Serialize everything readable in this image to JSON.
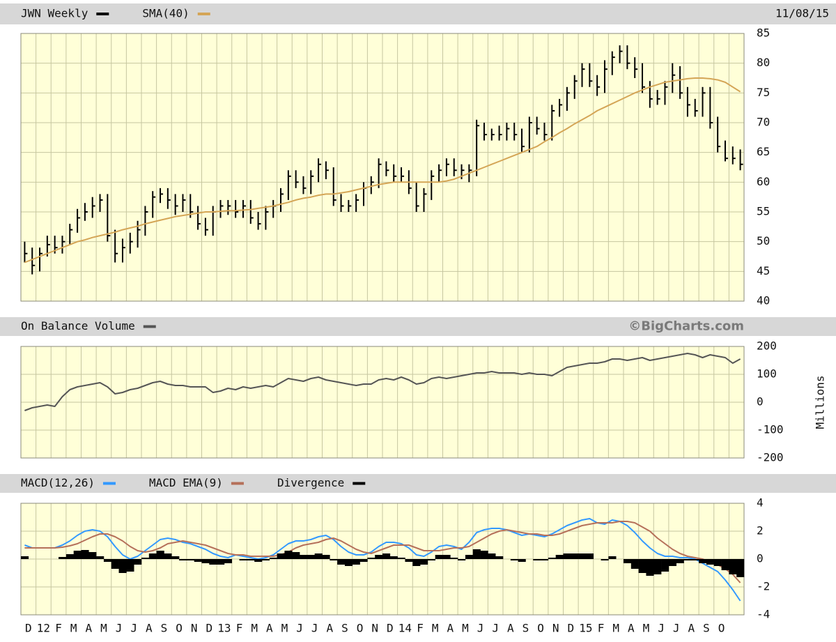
{
  "chart_data": [
    {
      "type": "ohlc",
      "date": "11/08/15",
      "ylim": [
        40,
        85
      ],
      "yticks": [
        40,
        45,
        50,
        55,
        60,
        65,
        70,
        75,
        80,
        85
      ],
      "grid": true,
      "series": [
        {
          "name": "JWN Weekly",
          "color": "#000000",
          "high": [
            50,
            49,
            49,
            51,
            51,
            51,
            53,
            55.5,
            56.5,
            57.5,
            58,
            58,
            52,
            50.5,
            51.5,
            53.5,
            56,
            58.5,
            59,
            59,
            58,
            58,
            58,
            56,
            54,
            56,
            57,
            57,
            57,
            57,
            57,
            55,
            56,
            57,
            59,
            62,
            62,
            61,
            62,
            64,
            63.5,
            62.5,
            58,
            57,
            58,
            60,
            61,
            64,
            63.5,
            63,
            62.5,
            62,
            60,
            59,
            62,
            63,
            64,
            64,
            63,
            63,
            70.5,
            70,
            69,
            69.5,
            70,
            70,
            69,
            71,
            71,
            70,
            73,
            74,
            76,
            78,
            80,
            80,
            78,
            80.5,
            82,
            83,
            83,
            81,
            80,
            77,
            75.5,
            77,
            80,
            79.5,
            76,
            74,
            76,
            76,
            71,
            67,
            66,
            65.5
          ],
          "low": [
            46.5,
            44.5,
            45,
            47.5,
            48,
            48,
            49.5,
            51.5,
            53.5,
            54,
            55,
            50,
            46.5,
            46.5,
            48,
            49,
            51,
            54,
            56.5,
            55.5,
            54.5,
            55,
            54,
            52,
            51,
            51,
            54,
            54.5,
            54,
            54,
            53,
            52,
            52,
            54,
            55,
            57,
            59,
            58,
            58,
            60,
            60.5,
            56,
            55,
            55,
            55,
            56,
            58,
            59,
            61,
            60,
            60,
            58,
            55,
            55,
            57,
            60,
            61,
            61,
            60.5,
            60,
            61,
            67,
            67,
            67,
            67,
            67,
            65,
            65,
            68,
            67,
            67,
            71,
            72,
            74,
            76,
            76,
            74.5,
            75,
            78,
            80,
            79,
            77.5,
            75,
            72.5,
            73,
            73,
            75,
            74,
            71,
            71,
            71,
            69,
            65,
            63.5,
            63,
            62
          ],
          "close": [
            48,
            46,
            48,
            49.5,
            49,
            50,
            52,
            54,
            55,
            56,
            57,
            51,
            48,
            49,
            50,
            52,
            55,
            57.5,
            58,
            57,
            56,
            57,
            55,
            53,
            52,
            55,
            56,
            56,
            55,
            56,
            54,
            53,
            55,
            56,
            58,
            61,
            60,
            59,
            61,
            63,
            62,
            57,
            56,
            56,
            57,
            59,
            60,
            63,
            62,
            61,
            61,
            59,
            56,
            58,
            61,
            62,
            63,
            62,
            62,
            62,
            69.5,
            68,
            68,
            68,
            69,
            68,
            66,
            70,
            69,
            68,
            72,
            73,
            75,
            77,
            79,
            77,
            76,
            79,
            81,
            82,
            80,
            79,
            76,
            74,
            74,
            76,
            78,
            75,
            73,
            72,
            75,
            70,
            66,
            64,
            64,
            63
          ]
        },
        {
          "name": "SMA(40)",
          "color": "#d4a556",
          "values": [
            46.5,
            47,
            47.5,
            48,
            48.5,
            49,
            49.5,
            50,
            50.3,
            50.7,
            51,
            51.3,
            51.6,
            52,
            52.3,
            52.6,
            53,
            53.3,
            53.6,
            53.9,
            54.2,
            54.4,
            54.6,
            54.8,
            55,
            55,
            55.1,
            55.2,
            55.2,
            55.3,
            55.4,
            55.6,
            55.8,
            56,
            56.3,
            56.6,
            57,
            57.3,
            57.5,
            57.8,
            58,
            58,
            58.2,
            58.4,
            58.7,
            59,
            59.3,
            59.6,
            59.8,
            60,
            60,
            60,
            60,
            60,
            60,
            60,
            60.2,
            60.5,
            61,
            61.5,
            62,
            62.5,
            63,
            63.5,
            64,
            64.5,
            65,
            65.5,
            66,
            66.8,
            67.5,
            68.3,
            69,
            69.8,
            70.5,
            71.2,
            72,
            72.6,
            73.2,
            73.8,
            74.4,
            75,
            75.5,
            76,
            76.4,
            76.8,
            77,
            77.2,
            77.4,
            77.5,
            77.5,
            77.4,
            77.2,
            76.8,
            76,
            75.2
          ]
        }
      ]
    },
    {
      "type": "line",
      "ylabel": "Millions",
      "watermark": "©BigCharts.com",
      "ylim": [
        -200,
        200
      ],
      "yticks": [
        -200,
        -100,
        0,
        100,
        200
      ],
      "grid": true,
      "series": [
        {
          "name": "On Balance Volume",
          "color": "#555555",
          "values": [
            -30,
            -20,
            -15,
            -10,
            -15,
            20,
            45,
            55,
            60,
            65,
            70,
            55,
            30,
            35,
            45,
            50,
            60,
            70,
            75,
            65,
            60,
            60,
            55,
            55,
            55,
            35,
            40,
            50,
            45,
            55,
            50,
            55,
            60,
            55,
            70,
            85,
            80,
            75,
            85,
            90,
            80,
            75,
            70,
            65,
            60,
            65,
            65,
            80,
            85,
            80,
            90,
            80,
            65,
            70,
            85,
            90,
            85,
            90,
            95,
            100,
            105,
            105,
            110,
            105,
            105,
            105,
            100,
            105,
            100,
            100,
            95,
            110,
            125,
            130,
            135,
            140,
            140,
            145,
            155,
            155,
            150,
            155,
            160,
            150,
            155,
            160,
            165,
            170,
            175,
            170,
            160,
            170,
            165,
            160,
            140,
            155
          ]
        }
      ]
    },
    {
      "type": "line",
      "ylim": [
        -4,
        4
      ],
      "yticks": [
        -4,
        -2,
        0,
        2,
        4
      ],
      "grid": true,
      "categories": [
        "D",
        null,
        "12",
        null,
        "F",
        null,
        "M",
        null,
        "A",
        null,
        "M",
        null,
        "J",
        null,
        "J",
        null,
        "A",
        null,
        "S",
        null,
        "O",
        null,
        "N",
        null,
        "D",
        null,
        "13",
        null,
        "F",
        null,
        "M",
        null,
        "A",
        null,
        "M",
        null,
        "J",
        null,
        "J",
        null,
        "A",
        null,
        "S",
        null,
        "O",
        null,
        "N",
        null,
        "D",
        null,
        "14",
        null,
        "F",
        null,
        "M",
        null,
        "A",
        null,
        "M",
        null,
        "J",
        null,
        "J",
        null,
        "A",
        null,
        "S",
        null,
        "O",
        null,
        "N",
        null,
        "D",
        null,
        "15",
        null,
        "F",
        null,
        "M",
        null,
        "A",
        null,
        "M",
        null,
        "J",
        null,
        "J",
        null,
        "A",
        null,
        "S",
        null,
        "O",
        null,
        null,
        null
      ],
      "series": [
        {
          "name": "MACD(12,26)",
          "color": "#3399ff",
          "values": [
            1.0,
            0.8,
            0.8,
            0.8,
            0.8,
            1.0,
            1.3,
            1.7,
            2.0,
            2.1,
            2.0,
            1.6,
            0.9,
            0.3,
            0.0,
            0.2,
            0.6,
            1.0,
            1.4,
            1.5,
            1.4,
            1.2,
            1.1,
            0.9,
            0.7,
            0.4,
            0.2,
            0.1,
            0.3,
            0.2,
            0.1,
            0.0,
            0.1,
            0.3,
            0.7,
            1.1,
            1.3,
            1.3,
            1.4,
            1.6,
            1.7,
            1.4,
            0.9,
            0.5,
            0.3,
            0.3,
            0.5,
            0.9,
            1.2,
            1.2,
            1.1,
            0.8,
            0.3,
            0.2,
            0.5,
            0.9,
            1.0,
            0.9,
            0.7,
            1.2,
            1.9,
            2.1,
            2.2,
            2.2,
            2.1,
            1.9,
            1.7,
            1.8,
            1.7,
            1.6,
            1.8,
            2.1,
            2.4,
            2.6,
            2.8,
            2.9,
            2.6,
            2.5,
            2.8,
            2.7,
            2.4,
            1.9,
            1.3,
            0.8,
            0.4,
            0.2,
            0.2,
            0.1,
            0.1,
            0.0,
            -0.3,
            -0.6,
            -0.9,
            -1.5,
            -2.2,
            -3.0
          ]
        },
        {
          "name": "MACD EMA(9)",
          "color": "#b5705a",
          "values": [
            0.8,
            0.8,
            0.8,
            0.8,
            0.8,
            0.85,
            0.95,
            1.1,
            1.35,
            1.6,
            1.8,
            1.8,
            1.6,
            1.3,
            0.9,
            0.6,
            0.5,
            0.6,
            0.8,
            1.1,
            1.2,
            1.3,
            1.2,
            1.1,
            1.0,
            0.8,
            0.6,
            0.4,
            0.3,
            0.3,
            0.2,
            0.2,
            0.2,
            0.2,
            0.3,
            0.5,
            0.8,
            1.0,
            1.1,
            1.2,
            1.4,
            1.5,
            1.3,
            1.0,
            0.7,
            0.5,
            0.4,
            0.6,
            0.8,
            1.0,
            1.0,
            1.0,
            0.8,
            0.6,
            0.6,
            0.6,
            0.7,
            0.8,
            0.8,
            0.9,
            1.2,
            1.5,
            1.8,
            2.0,
            2.1,
            2.0,
            1.9,
            1.8,
            1.8,
            1.7,
            1.7,
            1.8,
            2.0,
            2.2,
            2.4,
            2.5,
            2.6,
            2.6,
            2.6,
            2.7,
            2.7,
            2.6,
            2.3,
            2.0,
            1.5,
            1.1,
            0.7,
            0.4,
            0.2,
            0.1,
            0.0,
            -0.2,
            -0.4,
            -0.7,
            -1.1,
            -1.7
          ]
        },
        {
          "name": "Divergence",
          "color": "#000000",
          "type": "bar",
          "values": [
            0.2,
            0,
            0,
            0,
            0,
            0.15,
            0.35,
            0.6,
            0.65,
            0.5,
            0.2,
            -0.2,
            -0.7,
            -1.0,
            -0.9,
            -0.4,
            0.1,
            0.4,
            0.6,
            0.4,
            0.2,
            -0.1,
            -0.1,
            -0.2,
            -0.3,
            -0.4,
            -0.4,
            -0.3,
            0,
            -0.1,
            -0.1,
            -0.2,
            -0.1,
            0.1,
            0.4,
            0.6,
            0.5,
            0.3,
            0.3,
            0.4,
            0.3,
            -0.1,
            -0.4,
            -0.5,
            -0.4,
            -0.2,
            0.1,
            0.3,
            0.4,
            0.2,
            0.1,
            -0.2,
            -0.5,
            -0.4,
            -0.1,
            0.3,
            0.3,
            0.1,
            -0.1,
            0.3,
            0.7,
            0.6,
            0.4,
            0.2,
            0,
            -0.1,
            -0.2,
            0,
            -0.1,
            -0.1,
            0.1,
            0.3,
            0.4,
            0.4,
            0.4,
            0.4,
            0,
            -0.1,
            0.2,
            0,
            -0.3,
            -0.7,
            -1.0,
            -1.2,
            -1.1,
            -0.9,
            -0.5,
            -0.3,
            -0.1,
            -0.1,
            -0.3,
            -0.4,
            -0.5,
            -0.8,
            -1.1,
            -1.3
          ]
        }
      ]
    }
  ]
}
